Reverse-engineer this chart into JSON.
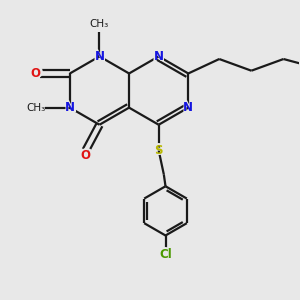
{
  "bg_color": "#e8e8e8",
  "bond_color": "#1a1a1a",
  "n_color": "#1515e0",
  "o_color": "#e01515",
  "s_color": "#b8b800",
  "cl_color": "#4a9900",
  "line_width": 1.6,
  "figsize": [
    3.0,
    3.0
  ],
  "dpi": 100,
  "xlim": [
    0,
    10
  ],
  "ylim": [
    0,
    10
  ]
}
